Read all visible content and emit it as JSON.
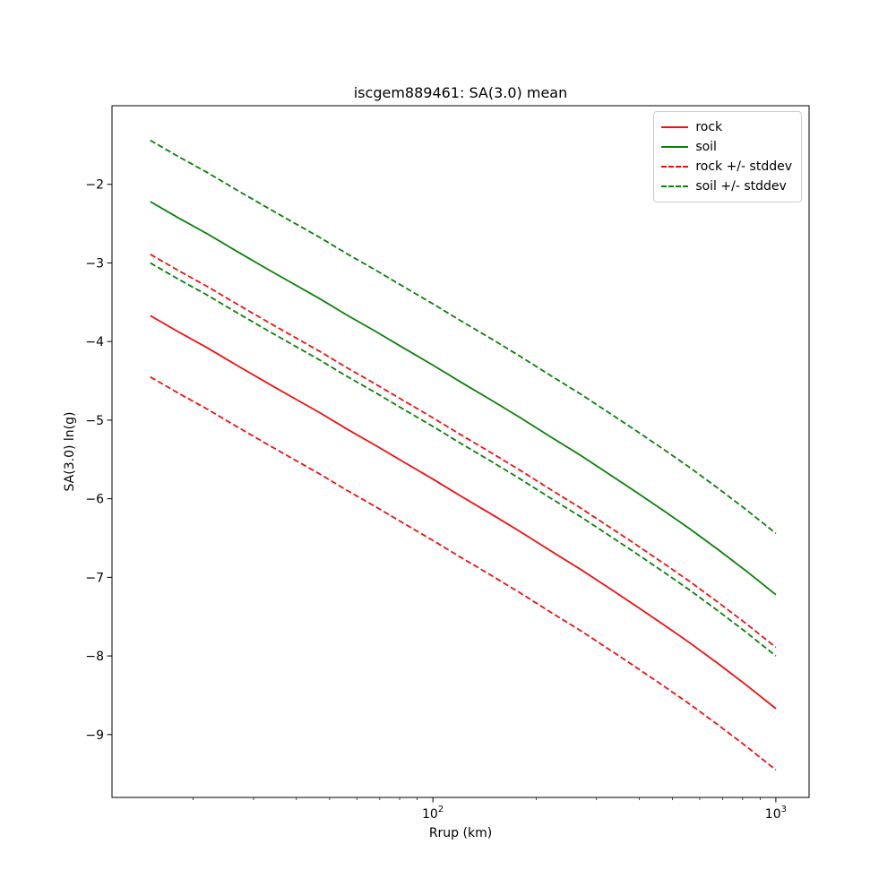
{
  "chart_data": {
    "type": "line",
    "title": "iscgem889461: SA(3.0) mean",
    "xlabel": "Rrup (km)",
    "ylabel": "SA(3.0) ln(g)",
    "xscale": "log",
    "xlim": [
      11.6,
      1250
    ],
    "ylim": [
      -9.8,
      -1.0
    ],
    "grid": false,
    "legend_position": "upper right",
    "x": [
      15,
      18,
      22,
      27,
      33,
      39,
      47,
      56,
      68,
      82,
      100,
      120,
      150,
      180,
      220,
      270,
      330,
      390,
      470,
      560,
      680,
      820,
      1000
    ],
    "series": [
      {
        "name": "rock",
        "style": "solid",
        "color": "#ee1111",
        "values": [
          -3.67,
          -3.87,
          -4.08,
          -4.31,
          -4.53,
          -4.71,
          -4.91,
          -5.11,
          -5.32,
          -5.53,
          -5.75,
          -5.96,
          -6.21,
          -6.42,
          -6.66,
          -6.9,
          -7.15,
          -7.36,
          -7.6,
          -7.83,
          -8.1,
          -8.37,
          -8.67
        ]
      },
      {
        "name": "soil",
        "style": "solid",
        "color": "#0b800b",
        "values": [
          -2.22,
          -2.42,
          -2.63,
          -2.86,
          -3.08,
          -3.26,
          -3.46,
          -3.66,
          -3.87,
          -4.08,
          -4.3,
          -4.51,
          -4.76,
          -4.97,
          -5.21,
          -5.45,
          -5.7,
          -5.91,
          -6.15,
          -6.38,
          -6.65,
          -6.92,
          -7.22
        ]
      },
      {
        "name": "rock +/- stddev",
        "style": "dashed",
        "color": "#ee1111",
        "upper": [
          -2.89,
          -3.09,
          -3.3,
          -3.53,
          -3.75,
          -3.93,
          -4.13,
          -4.33,
          -4.54,
          -4.75,
          -4.97,
          -5.18,
          -5.43,
          -5.64,
          -5.88,
          -6.12,
          -6.37,
          -6.58,
          -6.82,
          -7.05,
          -7.32,
          -7.59,
          -7.89
        ],
        "lower": [
          -4.45,
          -4.65,
          -4.86,
          -5.09,
          -5.31,
          -5.49,
          -5.69,
          -5.89,
          -6.1,
          -6.31,
          -6.53,
          -6.74,
          -6.99,
          -7.2,
          -7.44,
          -7.68,
          -7.93,
          -8.14,
          -8.38,
          -8.61,
          -8.88,
          -9.15,
          -9.45
        ]
      },
      {
        "name": "soil +/- stddev",
        "style": "dashed",
        "color": "#0b800b",
        "upper": [
          -1.44,
          -1.64,
          -1.85,
          -2.08,
          -2.3,
          -2.48,
          -2.68,
          -2.88,
          -3.09,
          -3.3,
          -3.52,
          -3.73,
          -3.98,
          -4.19,
          -4.43,
          -4.67,
          -4.92,
          -5.13,
          -5.37,
          -5.6,
          -5.87,
          -6.14,
          -6.44
        ],
        "lower": [
          -3.0,
          -3.2,
          -3.41,
          -3.64,
          -3.86,
          -4.04,
          -4.24,
          -4.44,
          -4.65,
          -4.86,
          -5.08,
          -5.29,
          -5.54,
          -5.75,
          -5.99,
          -6.23,
          -6.48,
          -6.69,
          -6.93,
          -7.16,
          -7.43,
          -7.7,
          -8.0
        ]
      }
    ],
    "yticks": [
      {
        "value": -9,
        "label": "−9"
      },
      {
        "value": -8,
        "label": "−8"
      },
      {
        "value": -7,
        "label": "−7"
      },
      {
        "value": -6,
        "label": "−6"
      },
      {
        "value": -5,
        "label": "−5"
      },
      {
        "value": -4,
        "label": "−4"
      },
      {
        "value": -3,
        "label": "−3"
      },
      {
        "value": -2,
        "label": "−2"
      }
    ],
    "xticks": [
      {
        "value": 100,
        "base": "10",
        "exp": "2"
      },
      {
        "value": 1000,
        "base": "10",
        "exp": "3"
      }
    ],
    "xminorticks": [
      20,
      30,
      40,
      50,
      60,
      70,
      80,
      90,
      200,
      300,
      400,
      500,
      600,
      700,
      800,
      900
    ]
  }
}
